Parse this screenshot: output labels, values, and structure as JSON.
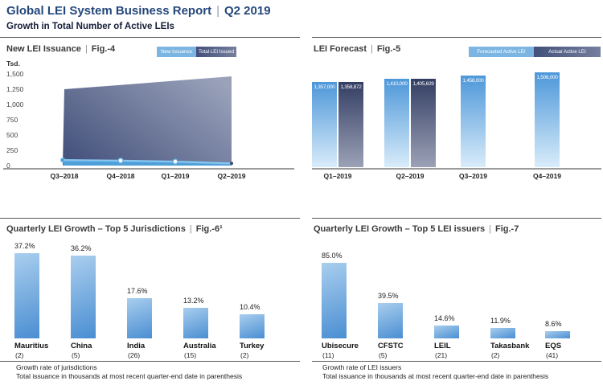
{
  "page": {
    "fig_sep": "|"
  },
  "header": {
    "title": "Global LEI System Business Report",
    "separator": "|",
    "period": "Q2 2019",
    "subtitle": "Growth in Total Number of Active LEIs"
  },
  "colors": {
    "title_blue": "#24477b",
    "subtitle_navy": "#141e38",
    "legend_light_blue": "#7cb5e1",
    "legend_dark_from": "#43507b",
    "legend_dark_to": "#767f9e",
    "area_dark_from": "#46537d",
    "area_dark_to": "#9aa2ba",
    "line_blue": "#86c5ef",
    "line_fill": "#4f9fd9",
    "marker_end_dark": "#3d4a72",
    "bar_blue_top": "#4d97d9",
    "bar_blue_bottom": "#d9ecfa",
    "bar_dark_top": "#333e63",
    "bar_dark_bottom": "#9ba1b6",
    "growth_bar_top": "#a9ceee",
    "growth_bar_bottom": "#4a8ed2",
    "axis_gray": "#9b9b9b",
    "rule_gray": "#5a5a5a"
  },
  "chart_data": [
    {
      "type": "area",
      "title": "New LEI Issuance",
      "fig": "Fig.-4",
      "y_unit": "Tsd.",
      "ylim": [
        0,
        1500
      ],
      "y_tick_labels": [
        "1,500",
        "1,250",
        "1,000",
        "750",
        "500",
        "250",
        "0"
      ],
      "categories": [
        "Q3–2018",
        "Q4–2018",
        "Q1–2019",
        "Q2–2019"
      ],
      "legend": [
        {
          "label": "New Issuance",
          "swatch": "light-blue"
        },
        {
          "label": "Total LEI Issued",
          "swatch": "dark-slate"
        }
      ],
      "series": [
        {
          "name": "New Issuance",
          "values": [
            90,
            80,
            65,
            35
          ]
        },
        {
          "name": "Total LEI Issued",
          "values": [
            1250,
            1320,
            1390,
            1460
          ]
        }
      ]
    },
    {
      "type": "bar",
      "title": "LEI Forecast",
      "fig": "Fig.-5",
      "categories": [
        "Q1–2019",
        "Q2–2019",
        "Q3–2019",
        "Q4–2019"
      ],
      "legend": [
        {
          "label": "Forecasted Active LEI",
          "swatch": "light-blue"
        },
        {
          "label": "Actual Active LEI",
          "swatch": "dark-slate"
        }
      ],
      "series": [
        {
          "name": "Forecasted Active LEI",
          "values": [
            1357000,
            1410000,
            1458000,
            1506000
          ],
          "labels": [
            "1,357,000",
            "1,410,000",
            "1,458,000",
            "1,506,000"
          ]
        },
        {
          "name": "Actual Active LEI",
          "values": [
            1358872,
            1405629,
            null,
            null
          ],
          "labels": [
            "1,358,872",
            "1,405,629",
            null,
            null
          ]
        }
      ]
    },
    {
      "type": "bar",
      "title": "Quarterly LEI Growth – Top 5 Jurisdictions",
      "fig": "Fig.-6¹",
      "categories": [
        "Mauritius",
        "China",
        "India",
        "Australia",
        "Turkey"
      ],
      "category_sub_labels": [
        "(2)",
        "(5)",
        "(26)",
        "(15)",
        "(2)"
      ],
      "values": [
        37.2,
        36.2,
        17.6,
        13.2,
        10.4
      ],
      "value_labels": [
        "37.2%",
        "36.2%",
        "17.6%",
        "13.2%",
        "10.4%"
      ],
      "footnotes": [
        "Growth rate of jurisdictions",
        "Total issuance in thousands at most recent quarter-end date in parenthesis"
      ]
    },
    {
      "type": "bar",
      "title": "Quarterly LEI Growth – Top 5 LEI issuers",
      "fig": "Fig.-7",
      "categories": [
        "Ubisecure",
        "CFSTC",
        "LEIL",
        "Takasbank",
        "EQS"
      ],
      "category_sub_labels": [
        "(11)",
        "(5)",
        "(21)",
        "(2)",
        "(41)"
      ],
      "values": [
        85.0,
        39.5,
        14.6,
        11.9,
        8.6
      ],
      "value_labels": [
        "85.0%",
        "39.5%",
        "14.6%",
        "11.9%",
        "8.6%"
      ],
      "footnotes": [
        "Growth rate of LEI issuers",
        "Total issuance in thousands at most recent quarter-end date in parenthesis"
      ]
    }
  ]
}
